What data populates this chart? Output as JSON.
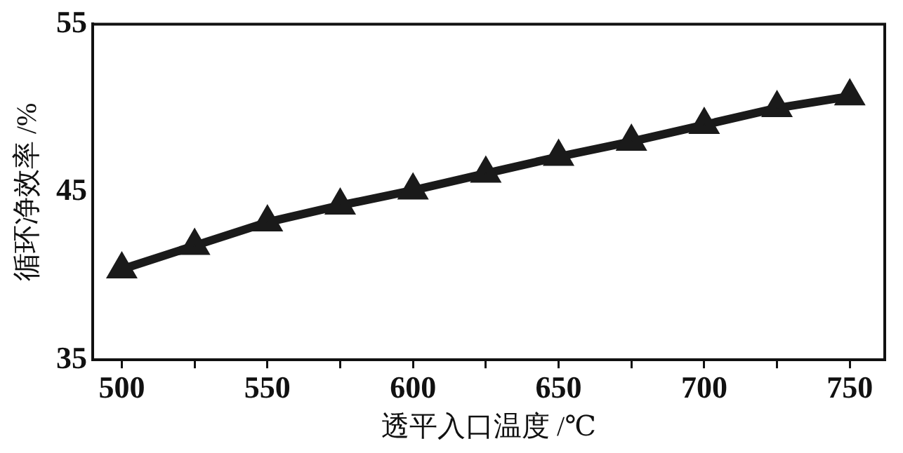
{
  "chart_data": {
    "type": "line",
    "xlabel": "透平入口温度 /℃",
    "ylabel": "循环净效率 /%",
    "x": [
      500,
      525,
      550,
      575,
      600,
      625,
      650,
      675,
      700,
      725,
      750
    ],
    "series": [
      {
        "color": "#1a1a1a",
        "values": [
          40.4,
          41.8,
          43.2,
          44.2,
          45.1,
          46.1,
          47.1,
          48.0,
          49.0,
          50.0,
          50.7
        ]
      }
    ],
    "xlim": [
      490,
      762
    ],
    "xticks": [
      500,
      {
        "value": 525,
        "label": null
      },
      550,
      {
        "value": 575,
        "label": null
      },
      600,
      {
        "value": 625,
        "label": null
      },
      650,
      {
        "value": 675,
        "label": null
      },
      700,
      {
        "value": 725,
        "label": null
      },
      750
    ],
    "ylim": [
      35,
      55
    ],
    "yticks": [
      35,
      45,
      55
    ],
    "grid": false,
    "legend": false,
    "marker": "triangle",
    "line_style": "solid"
  }
}
